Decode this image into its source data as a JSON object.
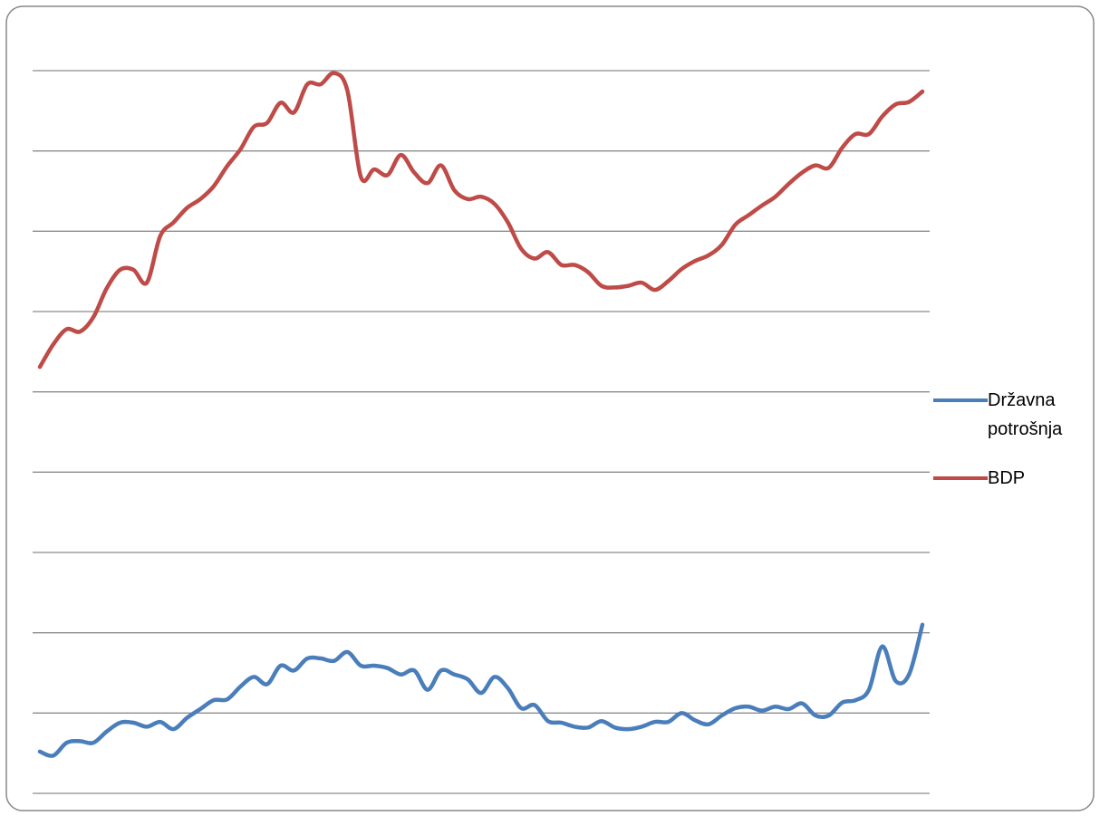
{
  "chart_data": {
    "type": "line",
    "categories": [
      null,
      null,
      null,
      null,
      null,
      null,
      null,
      null,
      null,
      null,
      null,
      null,
      null,
      null,
      null,
      null,
      null,
      null,
      null,
      null,
      null,
      null,
      null,
      null,
      null,
      null,
      null,
      null,
      null,
      null,
      null,
      null,
      null,
      null,
      null,
      null,
      null,
      null,
      null,
      null,
      null,
      null,
      null,
      null,
      null,
      null,
      null,
      null,
      null,
      null,
      null,
      null,
      null,
      null,
      null,
      null,
      null,
      null,
      null,
      null,
      null,
      null,
      null,
      null,
      null,
      null,
      null
    ],
    "series": [
      {
        "name": "Državna potrošnja",
        "color": "#4a7ebb",
        "values": [
          0.52,
          0.47,
          0.63,
          0.65,
          0.63,
          0.77,
          0.88,
          0.88,
          0.83,
          0.89,
          0.8,
          0.94,
          1.05,
          1.16,
          1.17,
          1.33,
          1.45,
          1.36,
          1.59,
          1.53,
          1.68,
          1.68,
          1.65,
          1.76,
          1.59,
          1.59,
          1.56,
          1.48,
          1.53,
          1.29,
          1.53,
          1.48,
          1.42,
          1.25,
          1.45,
          1.31,
          1.06,
          1.1,
          0.9,
          0.88,
          0.83,
          0.82,
          0.9,
          0.82,
          0.8,
          0.83,
          0.89,
          0.89,
          1.0,
          0.91,
          0.86,
          0.97,
          1.06,
          1.08,
          1.03,
          1.08,
          1.05,
          1.12,
          0.97,
          0.97,
          1.13,
          1.16,
          1.29,
          1.83,
          1.4,
          1.48,
          2.1
        ]
      },
      {
        "name": "BDP",
        "color": "#be4b48",
        "values": [
          5.31,
          5.59,
          5.78,
          5.75,
          5.93,
          6.29,
          6.52,
          6.52,
          6.36,
          6.94,
          7.11,
          7.29,
          7.4,
          7.56,
          7.81,
          8.02,
          8.3,
          8.35,
          8.6,
          8.48,
          8.83,
          8.83,
          8.97,
          8.75,
          7.68,
          7.77,
          7.7,
          7.95,
          7.73,
          7.6,
          7.82,
          7.51,
          7.4,
          7.43,
          7.34,
          7.11,
          6.78,
          6.66,
          6.74,
          6.58,
          6.58,
          6.49,
          6.32,
          6.3,
          6.32,
          6.36,
          6.27,
          6.38,
          6.53,
          6.63,
          6.7,
          6.83,
          7.08,
          7.2,
          7.32,
          7.43,
          7.59,
          7.73,
          7.82,
          7.79,
          8.04,
          8.21,
          8.21,
          8.43,
          8.58,
          8.61,
          8.74
        ]
      }
    ],
    "ylim": [
      0,
      9
    ],
    "yticks": [
      0,
      1,
      2,
      3,
      4,
      5,
      6,
      7,
      8,
      9
    ],
    "show_tick_labels": false,
    "grid": true,
    "legend": "right"
  }
}
